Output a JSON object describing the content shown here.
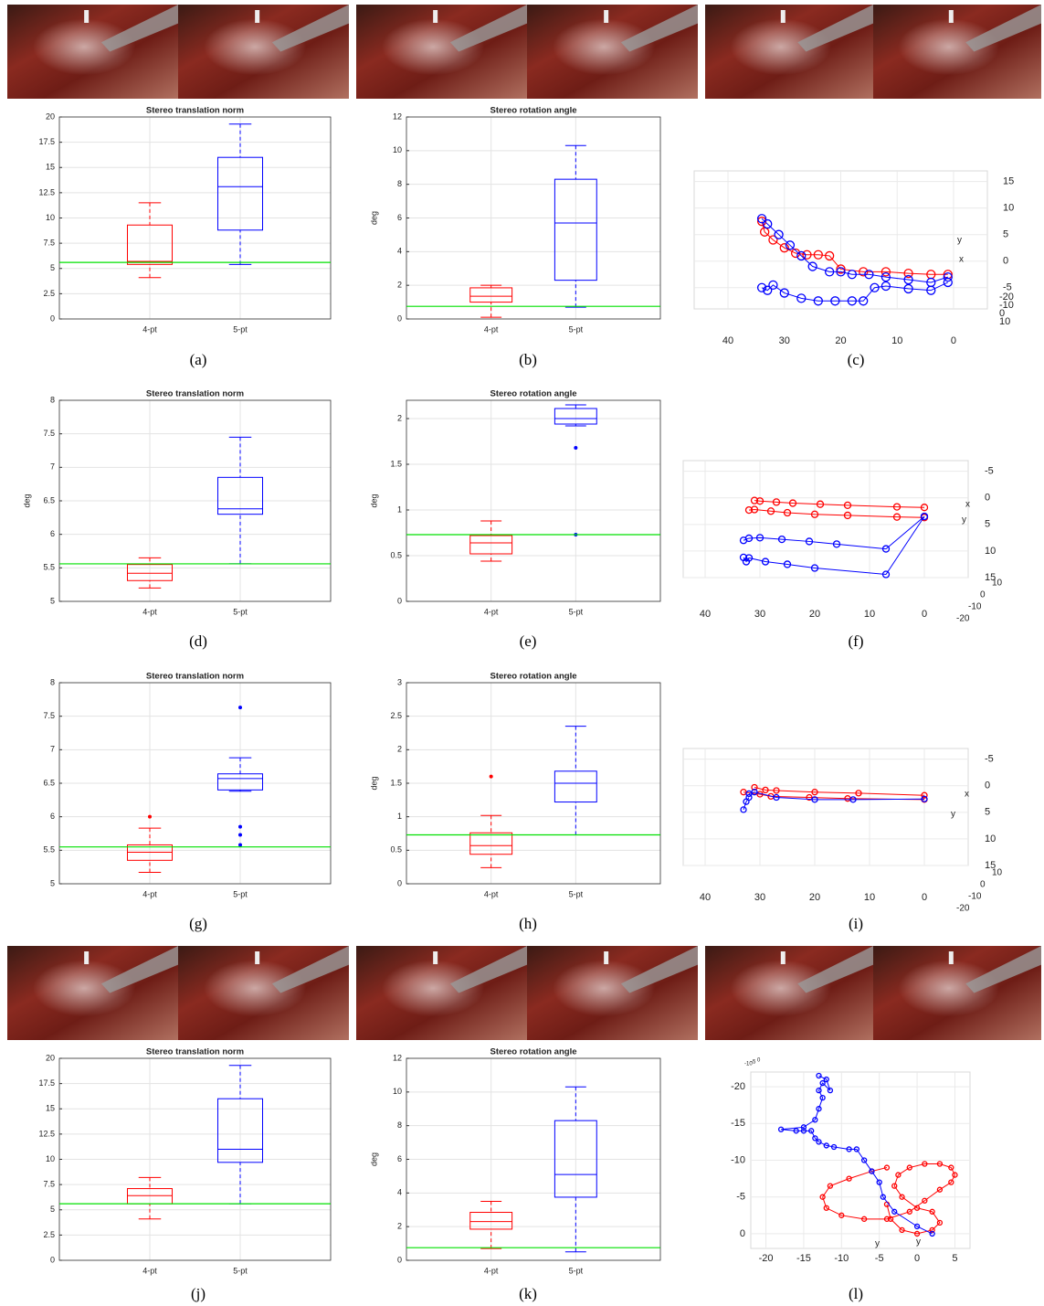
{
  "chart_data": [
    {
      "type": "box",
      "title": "Stereo translation norm",
      "caption": "(a)",
      "categories": [
        "4-pt",
        "5-pt"
      ],
      "ylim": [
        0,
        20
      ],
      "yticks": [
        0,
        2.5,
        5,
        7.5,
        10,
        12.5,
        15,
        17.5,
        20
      ],
      "grid": true,
      "boxes": [
        {
          "color": "#ff0000",
          "whisker_low": 4.1,
          "q1": 5.4,
          "median": 5.7,
          "q3": 9.3,
          "whisker_high": 11.5,
          "outliers": []
        },
        {
          "color": "#0000ff",
          "whisker_low": 5.4,
          "q1": 8.8,
          "median": 13.1,
          "q3": 16.0,
          "whisker_high": 19.3,
          "outliers": []
        }
      ],
      "reference_line": {
        "value": 5.6,
        "color": "#00e000"
      }
    },
    {
      "type": "box",
      "title": "Stereo rotation angle",
      "caption": "(b)",
      "ylabel": "deg",
      "categories": [
        "4-pt",
        "5-pt"
      ],
      "ylim": [
        0,
        12
      ],
      "yticks": [
        0,
        2,
        4,
        6,
        8,
        10,
        12
      ],
      "grid": true,
      "boxes": [
        {
          "color": "#ff0000",
          "whisker_low": 0.1,
          "q1": 1.0,
          "median": 1.35,
          "q3": 1.85,
          "whisker_high": 2.0,
          "outliers": []
        },
        {
          "color": "#0000ff",
          "whisker_low": 0.7,
          "q1": 2.3,
          "median": 5.7,
          "q3": 8.3,
          "whisker_high": 10.3,
          "outliers": []
        }
      ],
      "reference_line": {
        "value": 0.75,
        "color": "#00e000"
      }
    },
    {
      "type": "trajectory3d",
      "caption": "(c)",
      "xlim": [
        46,
        -6
      ],
      "zlim": [
        17,
        -9
      ],
      "xticks": [
        40,
        30,
        20,
        10,
        0
      ],
      "zticks": [
        15,
        10,
        5,
        0,
        -5
      ],
      "depth_ticks": [
        -20,
        -10,
        0,
        10
      ],
      "origin_labels": [
        "x",
        "y"
      ],
      "series": [
        {
          "color": "#ff0000",
          "x": [
            34,
            33.5,
            32,
            30,
            28,
            26,
            24,
            22,
            20,
            16,
            12,
            8,
            4,
            1
          ],
          "z": [
            7.5,
            5.5,
            4,
            2.5,
            1.5,
            1.2,
            1.2,
            1,
            -1.5,
            -2,
            -2,
            -2.3,
            -2.5,
            -2.5
          ]
        },
        {
          "color": "#0000ff",
          "x": [
            34,
            33,
            31,
            29,
            27,
            25,
            22,
            20,
            18,
            15,
            12,
            8,
            4,
            1
          ],
          "z": [
            8,
            7,
            5,
            3,
            1,
            -1,
            -2,
            -2,
            -2.5,
            -2.5,
            -3,
            -3.5,
            -4,
            -3
          ]
        },
        {
          "color": "#0000ff",
          "x": [
            34,
            33,
            32,
            30,
            27,
            24,
            21,
            18,
            16,
            14,
            12,
            8,
            4,
            1
          ],
          "z": [
            -5,
            -5.5,
            -4.5,
            -6,
            -7,
            -7.5,
            -7.5,
            -7.5,
            -7.5,
            -5,
            -4.7,
            -5.2,
            -5.5,
            -4
          ]
        }
      ]
    },
    {
      "type": "box",
      "title": "Stereo translation norm",
      "caption": "(d)",
      "ylabel": "deg",
      "categories": [
        "4-pt",
        "5-pt"
      ],
      "ylim": [
        5,
        8
      ],
      "yticks": [
        5,
        5.5,
        6,
        6.5,
        7,
        7.5,
        8
      ],
      "grid": true,
      "boxes": [
        {
          "color": "#ff0000",
          "whisker_low": 5.2,
          "q1": 5.31,
          "median": 5.42,
          "q3": 5.55,
          "whisker_high": 5.65,
          "outliers": []
        },
        {
          "color": "#0000ff",
          "whisker_low": 5.56,
          "q1": 6.3,
          "median": 6.38,
          "q3": 6.85,
          "whisker_high": 7.45,
          "outliers": []
        }
      ],
      "reference_line": {
        "value": 5.56,
        "color": "#00e000"
      }
    },
    {
      "type": "box",
      "title": "Stereo rotation angle",
      "caption": "(e)",
      "ylabel": "deg",
      "categories": [
        "4-pt",
        "5-pt"
      ],
      "ylim": [
        0,
        2.2
      ],
      "yticks": [
        0,
        0.5,
        1,
        1.5,
        2
      ],
      "grid": true,
      "boxes": [
        {
          "color": "#ff0000",
          "whisker_low": 0.44,
          "q1": 0.52,
          "median": 0.64,
          "q3": 0.72,
          "whisker_high": 0.88,
          "outliers": []
        },
        {
          "color": "#0000ff",
          "whisker_low": 1.92,
          "q1": 1.94,
          "median": 2.0,
          "q3": 2.11,
          "whisker_high": 2.15,
          "outliers": [
            1.68,
            0.73
          ]
        }
      ],
      "reference_line": {
        "value": 0.73,
        "color": "#00e000"
      }
    },
    {
      "type": "trajectory3d",
      "caption": "(f)",
      "xlim": [
        44,
        -8
      ],
      "zlim": [
        -7,
        15
      ],
      "xticks": [
        40,
        30,
        20,
        10,
        0
      ],
      "zticks": [
        -5,
        0,
        5,
        10,
        15
      ],
      "depth_ticks": [
        10,
        0,
        -10,
        -20
      ],
      "origin_labels": [
        "x",
        "y"
      ],
      "series": [
        {
          "color": "#ff0000",
          "x": [
            31,
            30,
            27,
            24,
            19,
            14,
            5,
            0
          ],
          "z": [
            0.5,
            0.6,
            0.8,
            1,
            1.2,
            1.4,
            1.7,
            1.8
          ]
        },
        {
          "color": "#ff0000",
          "x": [
            32,
            31,
            28,
            25,
            20,
            14,
            5,
            0
          ],
          "z": [
            2.3,
            2.2,
            2.5,
            2.8,
            3.1,
            3.3,
            3.6,
            3.7
          ]
        },
        {
          "color": "#0000ff",
          "x": [
            33,
            32,
            30,
            26,
            21,
            16,
            7,
            0
          ],
          "z": [
            8,
            7.6,
            7.5,
            7.8,
            8.2,
            8.7,
            9.6,
            3.5
          ]
        },
        {
          "color": "#0000ff",
          "x": [
            33,
            32.5,
            32,
            29,
            25,
            20,
            7,
            0
          ],
          "z": [
            11.2,
            12,
            11.3,
            12,
            12.5,
            13.2,
            14.4,
            3.5
          ]
        }
      ]
    },
    {
      "type": "box",
      "title": "Stereo translation norm",
      "caption": "(g)",
      "categories": [
        "4-pt",
        "5-pt"
      ],
      "ylim": [
        5,
        8
      ],
      "yticks": [
        5,
        5.5,
        6,
        6.5,
        7,
        7.5,
        8
      ],
      "grid": true,
      "boxes": [
        {
          "color": "#ff0000",
          "whisker_low": 5.17,
          "q1": 5.35,
          "median": 5.47,
          "q3": 5.58,
          "whisker_high": 5.83,
          "outliers": [
            6.0
          ]
        },
        {
          "color": "#0000ff",
          "whisker_low": 6.38,
          "q1": 6.4,
          "median": 6.57,
          "q3": 6.64,
          "whisker_high": 6.88,
          "outliers": [
            7.63,
            5.85,
            5.73,
            5.58
          ]
        }
      ],
      "reference_line": {
        "value": 5.55,
        "color": "#00e000"
      }
    },
    {
      "type": "box",
      "title": "Stereo rotation angle",
      "caption": "(h)",
      "ylabel": "deg",
      "categories": [
        "4-pt",
        "5-pt"
      ],
      "ylim": [
        0,
        3
      ],
      "yticks": [
        0,
        0.5,
        1,
        1.5,
        2,
        2.5,
        3
      ],
      "grid": true,
      "boxes": [
        {
          "color": "#ff0000",
          "whisker_low": 0.24,
          "q1": 0.44,
          "median": 0.57,
          "q3": 0.76,
          "whisker_high": 1.02,
          "outliers": [
            1.6
          ]
        },
        {
          "color": "#0000ff",
          "whisker_low": 0.73,
          "q1": 1.22,
          "median": 1.5,
          "q3": 1.68,
          "whisker_high": 2.35,
          "outliers": []
        }
      ],
      "reference_line": {
        "value": 0.73,
        "color": "#00e000"
      }
    },
    {
      "type": "trajectory3d",
      "caption": "(i)",
      "xlim": [
        44,
        -8
      ],
      "zlim": [
        -7,
        15
      ],
      "xticks": [
        40,
        30,
        20,
        10,
        0
      ],
      "zticks": [
        -5,
        0,
        5,
        10,
        15
      ],
      "depth_ticks": [
        10,
        0,
        -10,
        -20
      ],
      "origin_labels": [
        "x",
        "y"
      ],
      "series": [
        {
          "color": "#ff0000",
          "x": [
            31,
            29,
            27,
            20,
            12,
            0
          ],
          "z": [
            0.3,
            0.8,
            0.9,
            1.2,
            1.4,
            1.8
          ]
        },
        {
          "color": "#ff0000",
          "x": [
            33,
            30,
            28,
            21,
            14,
            0
          ],
          "z": [
            1.2,
            1.6,
            2,
            2.2,
            2.4,
            2.6
          ]
        },
        {
          "color": "#0000ff",
          "x": [
            32,
            31,
            27,
            20,
            13,
            0
          ],
          "z": [
            1.5,
            1.2,
            2.2,
            2.6,
            2.6,
            2.5
          ]
        },
        {
          "color": "#0000ff",
          "x": [
            32,
            32.5,
            33
          ],
          "z": [
            2.2,
            3,
            4.5
          ]
        }
      ]
    },
    {
      "type": "box",
      "title": "Stereo translation norm",
      "caption": "(j)",
      "categories": [
        "4-pt",
        "5-pt"
      ],
      "ylim": [
        0,
        20
      ],
      "yticks": [
        0,
        2.5,
        5,
        7.5,
        10,
        12.5,
        15,
        17.5,
        20
      ],
      "grid": true,
      "boxes": [
        {
          "color": "#ff0000",
          "whisker_low": 4.1,
          "q1": 5.6,
          "median": 6.4,
          "q3": 7.1,
          "whisker_high": 8.2,
          "outliers": []
        },
        {
          "color": "#0000ff",
          "whisker_low": 5.6,
          "q1": 9.7,
          "median": 11.0,
          "q3": 16.0,
          "whisker_high": 19.3,
          "outliers": []
        }
      ],
      "reference_line": {
        "value": 5.6,
        "color": "#00e000"
      }
    },
    {
      "type": "box",
      "title": "Stereo rotation angle",
      "caption": "(k)",
      "ylabel": "deg",
      "categories": [
        "4-pt",
        "5-pt"
      ],
      "ylim": [
        0,
        12
      ],
      "yticks": [
        0,
        2,
        4,
        6,
        8,
        10,
        12
      ],
      "grid": true,
      "boxes": [
        {
          "color": "#ff0000",
          "whisker_low": 0.7,
          "q1": 1.85,
          "median": 2.3,
          "q3": 2.85,
          "whisker_high": 3.5,
          "outliers": []
        },
        {
          "color": "#0000ff",
          "whisker_low": 0.5,
          "q1": 3.75,
          "median": 5.1,
          "q3": 8.3,
          "whisker_high": 10.3,
          "outliers": []
        }
      ],
      "reference_line": {
        "value": 0.75,
        "color": "#00e000"
      }
    },
    {
      "type": "trajectory3d",
      "caption": "(l)",
      "xlim": [
        -22,
        7
      ],
      "zlim": [
        -22,
        2
      ],
      "xticks": [
        -20,
        -15,
        -10,
        -5,
        0,
        5
      ],
      "zticks": [
        -20,
        -15,
        -10,
        -5,
        0
      ],
      "depth_ticks": [
        -10,
        -5,
        0
      ],
      "origin_labels": [
        "y",
        "y"
      ],
      "series": [
        {
          "color": "#ff0000",
          "x": [
            -4,
            -6,
            -9,
            -11.5,
            -12.5,
            -12,
            -10,
            -7,
            -4,
            -1,
            1,
            3,
            4.5,
            5,
            4.5,
            3,
            1,
            -1,
            -2.5,
            -3,
            -2,
            0,
            2,
            3,
            2,
            0,
            -2,
            -3.5,
            -4
          ],
          "z": [
            -9,
            -8.5,
            -7.5,
            -6.5,
            -5,
            -3.5,
            -2.5,
            -2,
            -2,
            -3,
            -4.5,
            -6,
            -7,
            -8,
            -9,
            -9.5,
            -9.5,
            -9,
            -8,
            -6.5,
            -5,
            -3.5,
            -3,
            -1.5,
            -0.5,
            0,
            -0.5,
            -2,
            -4
          ]
        },
        {
          "color": "#0000ff",
          "x": [
            2,
            0,
            -3,
            -4.5,
            -5,
            -6,
            -7,
            -8,
            -9,
            -11,
            -12,
            -13,
            -13.5,
            -14,
            -15,
            -16,
            -18,
            -15,
            -13.5,
            -13,
            -12.5,
            -13,
            -12.5,
            -11.5,
            -12,
            -13
          ],
          "z": [
            0,
            -1,
            -3,
            -5,
            -7,
            -8.5,
            -10,
            -11.5,
            -11.5,
            -11.8,
            -12,
            -12.5,
            -13,
            -14,
            -14,
            -14,
            -14.2,
            -14.5,
            -15.5,
            -17,
            -18.5,
            -19.5,
            -20.5,
            -19.5,
            -21,
            -21.5
          ]
        }
      ]
    }
  ]
}
